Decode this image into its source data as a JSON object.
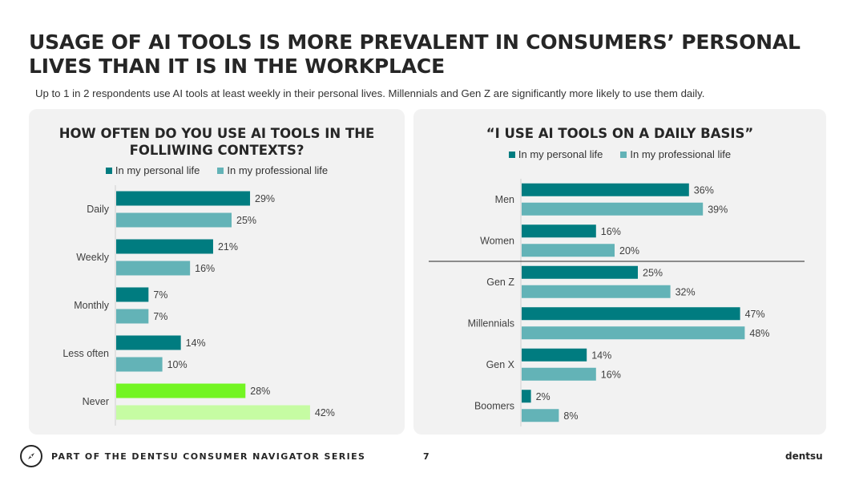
{
  "header": {
    "title_line1": "USAGE OF AI TOOLS IS MORE PREVALENT IN CONSUMERS’ PERSONAL",
    "title_line2": "LIVES THAN IT IS IN THE WORKPLACE",
    "subtitle": "Up to 1 in 2 respondents use AI tools at least weekly in their personal lives. Millennials and Gen Z are significantly more likely to use them daily."
  },
  "chart_data": [
    {
      "type": "bar",
      "orientation": "horizontal",
      "title_line1": "HOW OFTEN DO YOU USE AI TOOLS IN THE",
      "title_line2": "FOLLIWING CONTEXTS?",
      "categories": [
        "Daily",
        "Weekly",
        "Monthly",
        "Less often",
        "Never"
      ],
      "series": [
        {
          "name": "In my personal life",
          "values": [
            29,
            21,
            7,
            14,
            28
          ],
          "color": "#007c80"
        },
        {
          "name": "In my professional life",
          "values": [
            25,
            16,
            7,
            10,
            42
          ],
          "color": "#63b3b7"
        }
      ],
      "value_suffix": "%",
      "highlight_category": "Never",
      "highlight_colors": [
        "#73f523",
        "#c6fca3"
      ],
      "xlim": [
        0,
        50
      ],
      "legend_position": "top-center",
      "grid": false
    },
    {
      "type": "bar",
      "orientation": "horizontal",
      "title": "“I USE AI TOOLS ON A DAILY BASIS”",
      "categories": [
        "Men",
        "Women",
        "Gen Z",
        "Millennials",
        "Gen X",
        "Boomers"
      ],
      "series": [
        {
          "name": "In my personal life",
          "values": [
            36,
            16,
            25,
            47,
            14,
            2
          ],
          "color": "#007c80"
        },
        {
          "name": "In my professional life",
          "values": [
            39,
            20,
            32,
            48,
            16,
            8
          ],
          "color": "#63b3b7"
        }
      ],
      "value_suffix": "%",
      "divider_after_category": "Women",
      "xlim": [
        0,
        50
      ],
      "legend_position": "top-center",
      "grid": false
    }
  ],
  "footer": {
    "icon": "compass-icon",
    "series_text": "PART OF THE DENTSU CONSUMER NAVIGATOR SERIES",
    "page_number": "7",
    "brand": "dentsu"
  }
}
